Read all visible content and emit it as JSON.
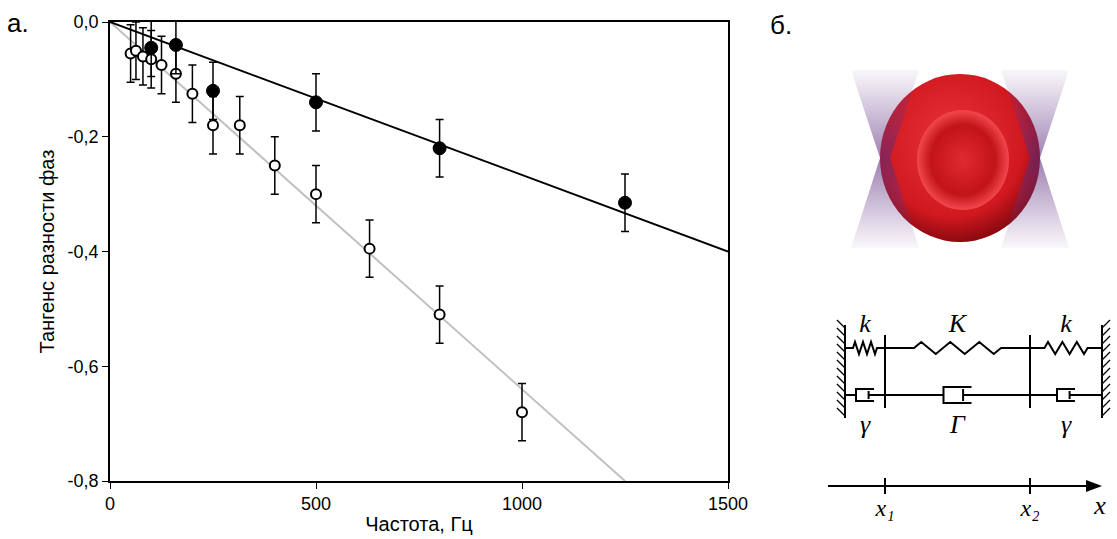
{
  "chart_data": {
    "type": "scatter",
    "annotations": [
      "а."
    ],
    "x_label": "Частота, Гц",
    "y_label": "Тангенс разности фаз",
    "xlim": [
      0,
      1500
    ],
    "xticks": [
      0,
      500,
      1000,
      1500
    ],
    "ylim": [
      -0.8,
      0
    ],
    "yticks": [
      {
        "value": 0,
        "label": "0,0"
      },
      {
        "value": -0.2,
        "label": "-0,2"
      },
      {
        "value": -0.4,
        "label": "-0,4"
      },
      {
        "value": -0.6,
        "label": "-0,6"
      },
      {
        "value": -0.8,
        "label": "-0,8"
      }
    ],
    "grid": false,
    "series": [
      {
        "type": "line",
        "color": "#c0c0c0",
        "line_style": "solid",
        "x": [
          0,
          1250
        ],
        "values": [
          0,
          -0.8
        ]
      },
      {
        "type": "line",
        "color": "#000000",
        "line_style": "solid",
        "x": [
          0,
          1500
        ],
        "values": [
          0,
          -0.4
        ]
      },
      {
        "type": "scatter",
        "color": "#000000",
        "marker": "open",
        "x": [
          50,
          63,
          80,
          100,
          125,
          160,
          200,
          250,
          315,
          400,
          500,
          630,
          800,
          1000
        ],
        "values": [
          -0.055,
          -0.05,
          -0.06,
          -0.065,
          -0.075,
          -0.09,
          -0.125,
          -0.18,
          -0.18,
          -0.25,
          -0.3,
          -0.395,
          -0.51,
          -0.68
        ],
        "error": [
          0.05,
          0.05,
          0.05,
          0.05,
          0.05,
          0.05,
          0.05,
          0.05,
          0.05,
          0.05,
          0.05,
          0.05,
          0.05,
          0.05
        ]
      },
      {
        "type": "scatter",
        "color": "#000000",
        "marker": "filled",
        "x": [
          100,
          160,
          250,
          500,
          800,
          1250
        ],
        "values": [
          -0.045,
          -0.04,
          -0.12,
          -0.14,
          -0.22,
          -0.315
        ],
        "error": [
          0.05,
          0.05,
          0.05,
          0.05,
          0.05,
          0.05
        ]
      }
    ]
  },
  "diagram": {
    "panel_label": "б.",
    "springs": [
      "k",
      "K",
      "k"
    ],
    "dampers": [
      "γ",
      "Γ",
      "γ"
    ],
    "axis": {
      "label": "x",
      "marks": [
        "x₁",
        "x₂"
      ]
    }
  }
}
